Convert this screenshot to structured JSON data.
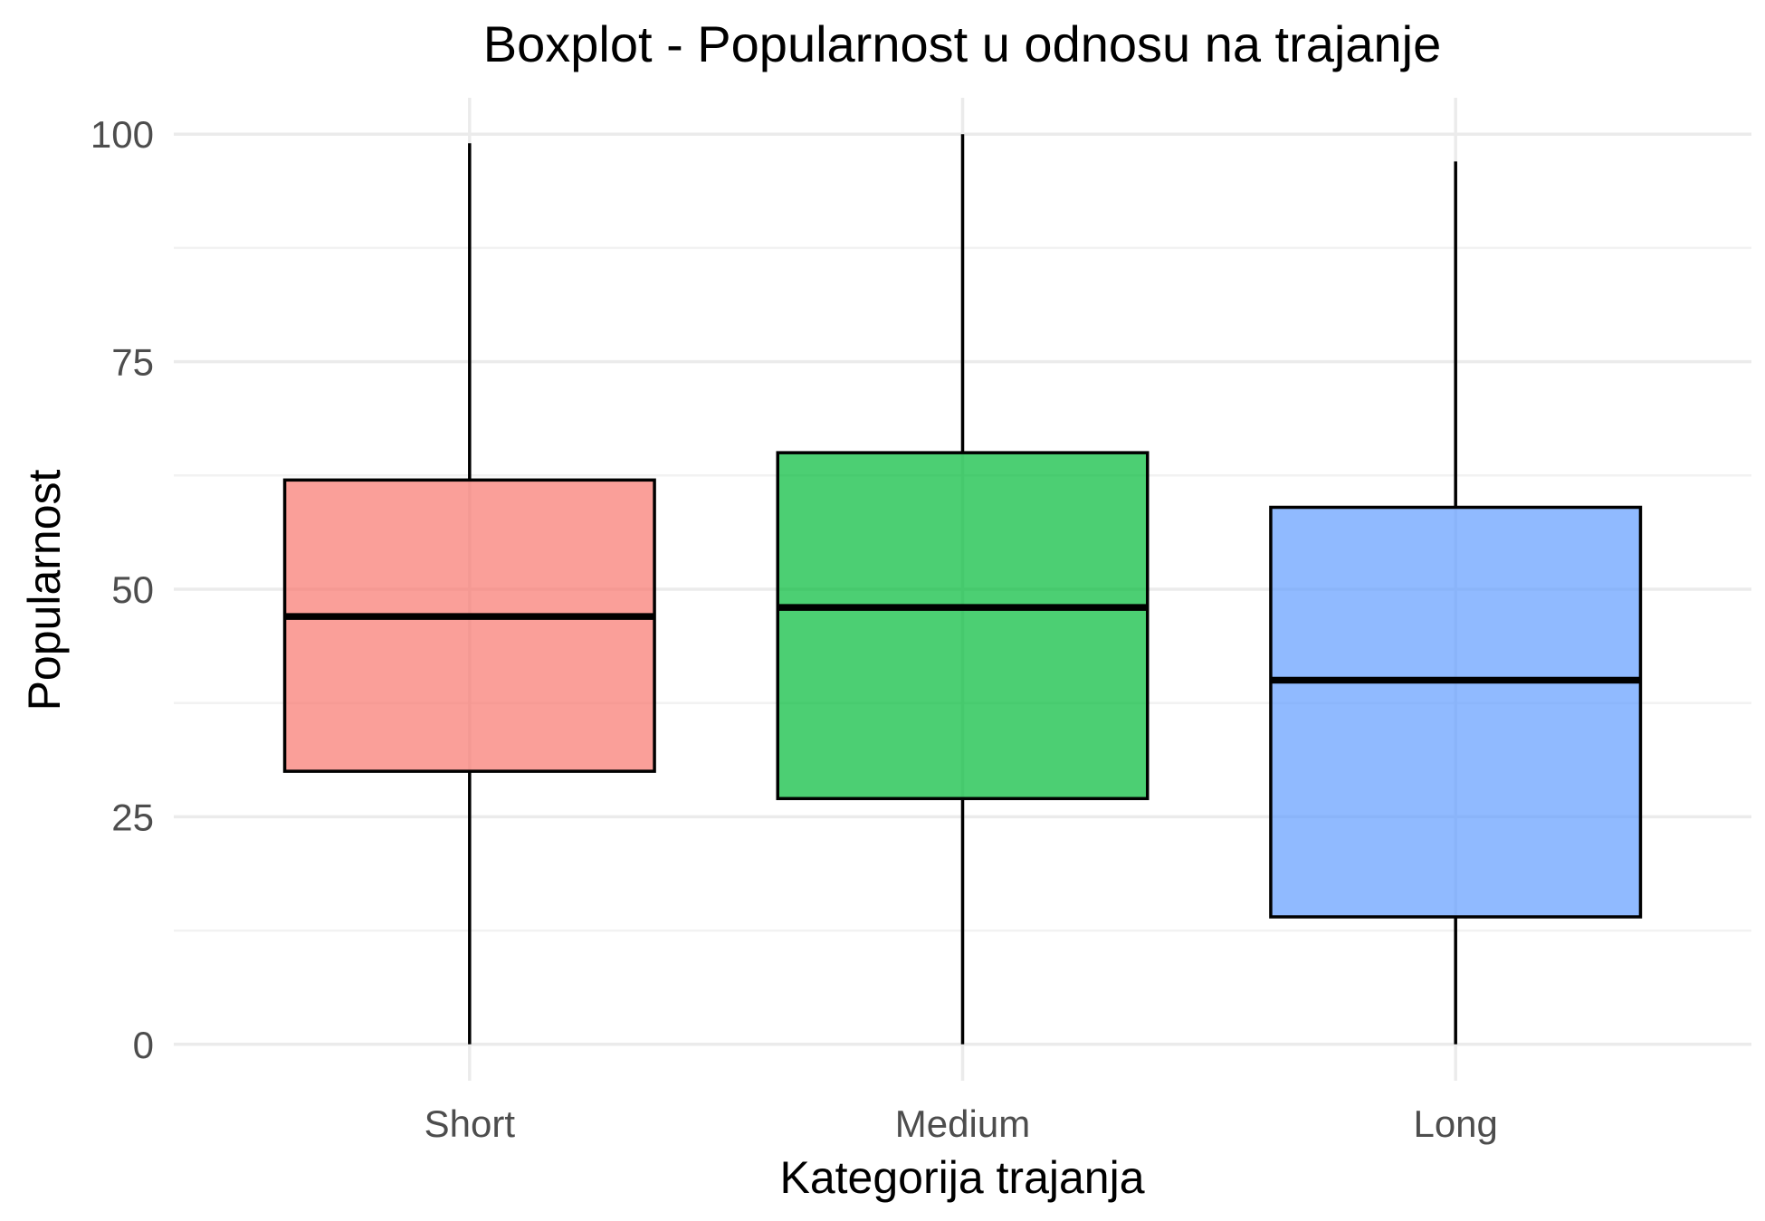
{
  "chart_data": {
    "type": "boxplot",
    "title": "Boxplot - Popularnost u odnosu na trajanje",
    "xlabel": "Kategorija trajanja",
    "ylabel": "Popularnost",
    "ylim": [
      -4,
      104
    ],
    "y_ticks": [
      0,
      25,
      50,
      75,
      100
    ],
    "y_tick_labels": [
      "0",
      "25",
      "50",
      "75",
      "100"
    ],
    "y_minor_ticks": [
      12.5,
      37.5,
      62.5,
      87.5
    ],
    "grid": true,
    "legend": "none",
    "categories": [
      "Short",
      "Medium",
      "Long"
    ],
    "boxes": [
      {
        "category": "Short",
        "min": 0,
        "q1": 30,
        "median": 47,
        "q3": 62,
        "max": 99,
        "color": "#F8766D"
      },
      {
        "category": "Medium",
        "min": 0,
        "q1": 27,
        "median": 48,
        "q3": 65,
        "max": 100,
        "color": "#00BA38"
      },
      {
        "category": "Long",
        "min": 0,
        "q1": 14,
        "median": 40,
        "q3": 59,
        "max": 97,
        "color": "#619CFF"
      }
    ],
    "fill_opacity": 0.7
  }
}
